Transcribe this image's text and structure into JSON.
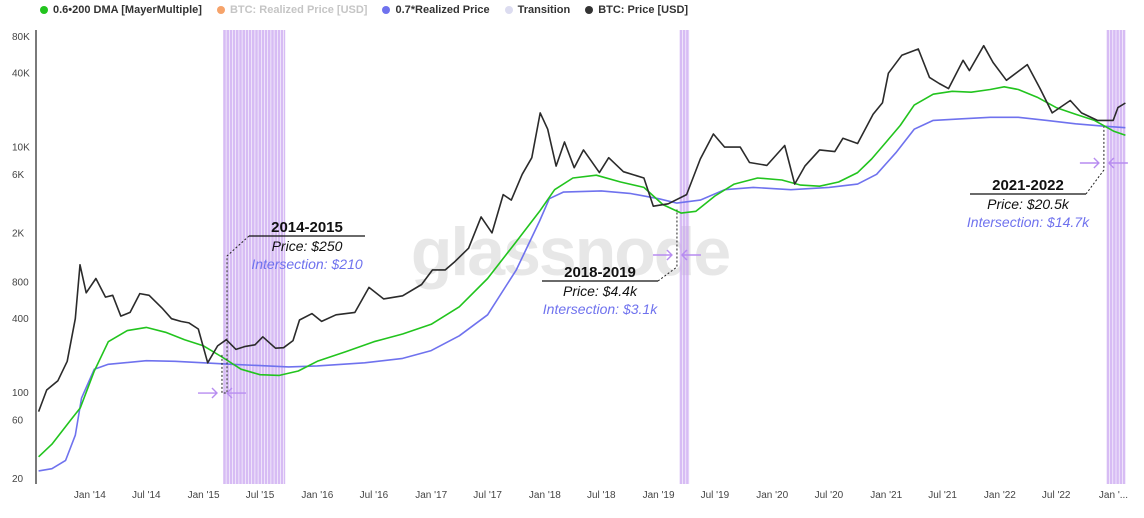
{
  "legend": [
    {
      "label": "0.6•200 DMA [MayerMultiple]",
      "color": "#22c41e",
      "muted": false
    },
    {
      "label": "BTC: Realized Price [USD]",
      "color": "#f6a36a",
      "muted": true
    },
    {
      "label": "0.7*Realized Price",
      "color": "#6f72ee",
      "muted": false
    },
    {
      "label": "Transition",
      "color": "#dcdcf0",
      "muted": false
    },
    {
      "label": "BTC: Price [USD]",
      "color": "#333333",
      "muted": false
    }
  ],
  "watermark": "glassnode",
  "colors": {
    "mayer": "#22c41e",
    "realized07": "#6f72ee",
    "price": "#2b2b2b",
    "transition": "#c9a6f0",
    "arrow": "#b78cf0"
  },
  "chart_data": {
    "type": "line",
    "y_scale": "log",
    "ylim": [
      18,
      90000
    ],
    "xlim": [
      "2013-07-15",
      "2023-02-10"
    ],
    "y_ticks": [
      {
        "value": 20,
        "label": "20"
      },
      {
        "value": 60,
        "label": "60"
      },
      {
        "value": 100,
        "label": "100"
      },
      {
        "value": 400,
        "label": "400"
      },
      {
        "value": 800,
        "label": "800"
      },
      {
        "value": 2000,
        "label": "2K"
      },
      {
        "value": 6000,
        "label": "6K"
      },
      {
        "value": 10000,
        "label": "10K"
      },
      {
        "value": 40000,
        "label": "40K"
      },
      {
        "value": 80000,
        "label": "80K"
      }
    ],
    "x_ticks": [
      {
        "date": "2014-01-01",
        "label": "Jan '14"
      },
      {
        "date": "2014-07-01",
        "label": "Jul '14"
      },
      {
        "date": "2015-01-01",
        "label": "Jan '15"
      },
      {
        "date": "2015-07-01",
        "label": "Jul '15"
      },
      {
        "date": "2016-01-01",
        "label": "Jan '16"
      },
      {
        "date": "2016-07-01",
        "label": "Jul '16"
      },
      {
        "date": "2017-01-01",
        "label": "Jan '17"
      },
      {
        "date": "2017-07-01",
        "label": "Jul '17"
      },
      {
        "date": "2018-01-01",
        "label": "Jan '18"
      },
      {
        "date": "2018-07-01",
        "label": "Jul '18"
      },
      {
        "date": "2019-01-01",
        "label": "Jan '19"
      },
      {
        "date": "2019-07-01",
        "label": "Jul '19"
      },
      {
        "date": "2020-01-01",
        "label": "Jan '20"
      },
      {
        "date": "2020-07-01",
        "label": "Jul '20"
      },
      {
        "date": "2021-01-01",
        "label": "Jan '21"
      },
      {
        "date": "2021-07-01",
        "label": "Jul '21"
      },
      {
        "date": "2022-01-01",
        "label": "Jan '22"
      },
      {
        "date": "2022-07-01",
        "label": "Jul '22"
      },
      {
        "date": "2023-01-01",
        "label": "Jan '..."
      }
    ],
    "series": [
      {
        "name": "BTC: Price [USD]",
        "color": "#2b2b2b",
        "points": [
          [
            "2013-07-20",
            70
          ],
          [
            "2013-08-15",
            105
          ],
          [
            "2013-09-20",
            125
          ],
          [
            "2013-10-20",
            180
          ],
          [
            "2013-11-15",
            400
          ],
          [
            "2013-11-30",
            1100
          ],
          [
            "2013-12-20",
            650
          ],
          [
            "2014-01-20",
            850
          ],
          [
            "2014-02-20",
            600
          ],
          [
            "2014-03-15",
            620
          ],
          [
            "2014-04-10",
            420
          ],
          [
            "2014-05-10",
            450
          ],
          [
            "2014-06-10",
            640
          ],
          [
            "2014-07-10",
            620
          ],
          [
            "2014-08-20",
            490
          ],
          [
            "2014-09-20",
            400
          ],
          [
            "2014-10-20",
            380
          ],
          [
            "2014-11-15",
            370
          ],
          [
            "2014-12-15",
            330
          ],
          [
            "2015-01-14",
            175
          ],
          [
            "2015-02-15",
            240
          ],
          [
            "2015-03-15",
            270
          ],
          [
            "2015-04-15",
            225
          ],
          [
            "2015-05-15",
            238
          ],
          [
            "2015-06-15",
            245
          ],
          [
            "2015-07-10",
            285
          ],
          [
            "2015-08-20",
            230
          ],
          [
            "2015-09-15",
            232
          ],
          [
            "2015-10-15",
            265
          ],
          [
            "2015-11-05",
            390
          ],
          [
            "2015-12-15",
            440
          ],
          [
            "2016-01-15",
            380
          ],
          [
            "2016-03-01",
            430
          ],
          [
            "2016-05-01",
            450
          ],
          [
            "2016-06-15",
            720
          ],
          [
            "2016-08-01",
            580
          ],
          [
            "2016-10-01",
            615
          ],
          [
            "2016-12-01",
            760
          ],
          [
            "2017-01-05",
            1000
          ],
          [
            "2017-02-15",
            1000
          ],
          [
            "2017-03-15",
            1150
          ],
          [
            "2017-05-01",
            1500
          ],
          [
            "2017-06-10",
            2700
          ],
          [
            "2017-07-15",
            2000
          ],
          [
            "2017-08-20",
            4100
          ],
          [
            "2017-09-15",
            3700
          ],
          [
            "2017-10-20",
            6000
          ],
          [
            "2017-11-20",
            8200
          ],
          [
            "2017-12-17",
            19000
          ],
          [
            "2018-01-10",
            14000
          ],
          [
            "2018-02-06",
            7000
          ],
          [
            "2018-03-05",
            11000
          ],
          [
            "2018-04-05",
            6800
          ],
          [
            "2018-05-05",
            9500
          ],
          [
            "2018-06-25",
            6200
          ],
          [
            "2018-07-25",
            8200
          ],
          [
            "2018-09-10",
            6300
          ],
          [
            "2018-11-15",
            5600
          ],
          [
            "2018-12-15",
            3300
          ],
          [
            "2019-02-01",
            3450
          ],
          [
            "2019-04-01",
            4100
          ],
          [
            "2019-05-15",
            8000
          ],
          [
            "2019-06-26",
            12800
          ],
          [
            "2019-08-01",
            10000
          ],
          [
            "2019-09-20",
            10000
          ],
          [
            "2019-10-20",
            7500
          ],
          [
            "2019-12-15",
            7100
          ],
          [
            "2020-02-10",
            10300
          ],
          [
            "2020-03-13",
            5000
          ],
          [
            "2020-04-15",
            7000
          ],
          [
            "2020-06-01",
            9500
          ],
          [
            "2020-07-20",
            9200
          ],
          [
            "2020-08-15",
            11800
          ],
          [
            "2020-10-01",
            10700
          ],
          [
            "2020-11-20",
            18500
          ],
          [
            "2020-12-20",
            23000
          ],
          [
            "2021-01-08",
            40000
          ],
          [
            "2021-02-20",
            56000
          ],
          [
            "2021-04-14",
            63000
          ],
          [
            "2021-05-20",
            37000
          ],
          [
            "2021-06-20",
            33000
          ],
          [
            "2021-07-20",
            30000
          ],
          [
            "2021-09-05",
            51000
          ],
          [
            "2021-09-25",
            42000
          ],
          [
            "2021-11-10",
            67000
          ],
          [
            "2021-12-10",
            49000
          ],
          [
            "2022-01-22",
            35000
          ],
          [
            "2022-03-30",
            47000
          ],
          [
            "2022-05-10",
            30000
          ],
          [
            "2022-06-18",
            19000
          ],
          [
            "2022-08-15",
            24000
          ],
          [
            "2022-09-20",
            19000
          ],
          [
            "2022-11-10",
            16500
          ],
          [
            "2022-12-31",
            16500
          ],
          [
            "2023-01-15",
            21000
          ],
          [
            "2023-02-08",
            22900
          ]
        ]
      },
      {
        "name": "0.6•200 DMA [MayerMultiple]",
        "color": "#22c41e",
        "points": [
          [
            "2013-07-20",
            30
          ],
          [
            "2013-09-01",
            38
          ],
          [
            "2013-11-01",
            60
          ],
          [
            "2013-12-01",
            75
          ],
          [
            "2014-01-15",
            150
          ],
          [
            "2014-03-01",
            260
          ],
          [
            "2014-05-01",
            320
          ],
          [
            "2014-07-01",
            340
          ],
          [
            "2014-09-01",
            310
          ],
          [
            "2014-11-01",
            270
          ],
          [
            "2015-01-01",
            240
          ],
          [
            "2015-03-01",
            195
          ],
          [
            "2015-05-01",
            155
          ],
          [
            "2015-07-01",
            140
          ],
          [
            "2015-09-01",
            138
          ],
          [
            "2015-11-01",
            150
          ],
          [
            "2016-01-01",
            180
          ],
          [
            "2016-04-01",
            215
          ],
          [
            "2016-07-01",
            260
          ],
          [
            "2016-10-01",
            300
          ],
          [
            "2017-01-01",
            360
          ],
          [
            "2017-04-01",
            500
          ],
          [
            "2017-07-01",
            850
          ],
          [
            "2017-10-01",
            1700
          ],
          [
            "2017-12-15",
            3000
          ],
          [
            "2018-02-01",
            4500
          ],
          [
            "2018-04-01",
            5600
          ],
          [
            "2018-06-15",
            5900
          ],
          [
            "2018-09-01",
            5200
          ],
          [
            "2018-11-15",
            4700
          ],
          [
            "2019-01-15",
            3400
          ],
          [
            "2019-03-15",
            2900
          ],
          [
            "2019-05-01",
            3000
          ],
          [
            "2019-07-01",
            4000
          ],
          [
            "2019-09-01",
            5000
          ],
          [
            "2019-11-15",
            5600
          ],
          [
            "2020-02-01",
            5400
          ],
          [
            "2020-04-01",
            4900
          ],
          [
            "2020-06-01",
            4800
          ],
          [
            "2020-08-01",
            5200
          ],
          [
            "2020-10-01",
            6200
          ],
          [
            "2020-11-15",
            8000
          ],
          [
            "2021-01-01",
            11000
          ],
          [
            "2021-02-15",
            15000
          ],
          [
            "2021-04-01",
            22000
          ],
          [
            "2021-06-01",
            27000
          ],
          [
            "2021-08-01",
            28500
          ],
          [
            "2021-10-01",
            28000
          ],
          [
            "2021-12-01",
            29500
          ],
          [
            "2022-01-15",
            31000
          ],
          [
            "2022-03-01",
            29500
          ],
          [
            "2022-05-01",
            25500
          ],
          [
            "2022-07-01",
            21000
          ],
          [
            "2022-09-01",
            18500
          ],
          [
            "2022-11-01",
            16500
          ],
          [
            "2023-01-01",
            13500
          ],
          [
            "2023-02-08",
            12500
          ]
        ]
      },
      {
        "name": "0.7*Realized Price",
        "color": "#6f72ee",
        "points": [
          [
            "2013-07-20",
            23
          ],
          [
            "2013-09-01",
            24
          ],
          [
            "2013-10-15",
            28
          ],
          [
            "2013-11-15",
            45
          ],
          [
            "2013-12-05",
            90
          ],
          [
            "2014-01-15",
            155
          ],
          [
            "2014-03-01",
            170
          ],
          [
            "2014-07-01",
            182
          ],
          [
            "2014-10-01",
            180
          ],
          [
            "2015-01-01",
            175
          ],
          [
            "2015-04-01",
            170
          ],
          [
            "2015-07-01",
            166
          ],
          [
            "2015-10-01",
            162
          ],
          [
            "2016-01-01",
            165
          ],
          [
            "2016-06-01",
            175
          ],
          [
            "2016-10-01",
            190
          ],
          [
            "2017-01-01",
            220
          ],
          [
            "2017-04-01",
            290
          ],
          [
            "2017-07-01",
            430
          ],
          [
            "2017-10-01",
            1000
          ],
          [
            "2017-12-15",
            2500
          ],
          [
            "2018-01-15",
            3800
          ],
          [
            "2018-03-01",
            4300
          ],
          [
            "2018-07-01",
            4400
          ],
          [
            "2018-10-01",
            4200
          ],
          [
            "2019-01-01",
            3800
          ],
          [
            "2019-03-01",
            3500
          ],
          [
            "2019-05-15",
            3700
          ],
          [
            "2019-08-01",
            4500
          ],
          [
            "2019-11-01",
            4700
          ],
          [
            "2020-03-01",
            4500
          ],
          [
            "2020-07-01",
            4700
          ],
          [
            "2020-10-01",
            5000
          ],
          [
            "2020-12-01",
            6000
          ],
          [
            "2021-02-01",
            9000
          ],
          [
            "2021-04-01",
            14000
          ],
          [
            "2021-06-01",
            16500
          ],
          [
            "2021-09-01",
            17000
          ],
          [
            "2021-12-01",
            17500
          ],
          [
            "2022-03-01",
            17500
          ],
          [
            "2022-06-01",
            16500
          ],
          [
            "2022-09-01",
            15500
          ],
          [
            "2022-12-01",
            14800
          ],
          [
            "2023-02-08",
            14400
          ]
        ]
      }
    ],
    "transition_bands": [
      [
        "2015-03-05",
        "2015-09-20"
      ],
      [
        "2019-03-10",
        "2019-04-10"
      ],
      [
        "2022-12-10",
        "2023-02-08"
      ]
    ],
    "annotations": [
      {
        "title": "2014-2015",
        "price": "Price: $250",
        "intersection": "Intersection: $210",
        "date": "2015-03-01",
        "value": 210
      },
      {
        "title": "2018-2019",
        "price": "Price: $4.4k",
        "intersection": "Intersection: $3.1k",
        "date": "2019-03-01",
        "value": 3100
      },
      {
        "title": "2021-2022",
        "price": "Price: $20.5k",
        "intersection": "Intersection: $14.7k",
        "date": "2022-12-01",
        "value": 14700
      }
    ]
  }
}
